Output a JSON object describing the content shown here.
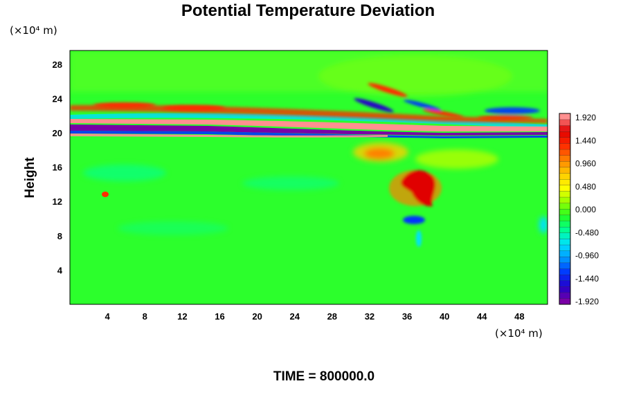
{
  "chart_data": {
    "type": "heatmap",
    "title": "Potential Temperature Deviation",
    "ylabel": "Height",
    "y_unit": "(×10⁴ m)",
    "x_unit": "(×10⁴ m)",
    "x_ticks": [
      "4",
      "8",
      "12",
      "16",
      "20",
      "24",
      "28",
      "32",
      "36",
      "40",
      "44",
      "48"
    ],
    "y_ticks": [
      "4",
      "8",
      "12",
      "16",
      "20",
      "24",
      "28"
    ],
    "xlim": [
      0,
      51
    ],
    "ylim": [
      0,
      29.6
    ],
    "colorbar": {
      "labels": [
        "1.920",
        "1.440",
        "0.960",
        "0.480",
        "0.000",
        "-0.480",
        "-0.960",
        "-1.440",
        "-1.920"
      ],
      "min": -1.92,
      "max": 1.92,
      "colors": [
        "#7a00a6",
        "#2600c8",
        "#0032ff",
        "#0096ff",
        "#00e0ff",
        "#00ff96",
        "#22ff22",
        "#96ff00",
        "#ffff00",
        "#ffc800",
        "#ff8000",
        "#ff2a00",
        "#e00000",
        "#ff9090"
      ]
    },
    "footer": "TIME = 800000.0",
    "field_features": [
      {
        "feature": "positive band",
        "y": 21.5,
        "x_range": [
          0,
          51
        ],
        "value": 1.92
      },
      {
        "feature": "negative band",
        "y": 20.5,
        "x_range": [
          0,
          51
        ],
        "value": -1.92
      },
      {
        "feature": "warm anomaly",
        "x": 36,
        "y": 14,
        "value": 1.6
      },
      {
        "feature": "cold anomaly",
        "x": 35,
        "y": 9.5,
        "value": -1.4
      }
    ]
  }
}
